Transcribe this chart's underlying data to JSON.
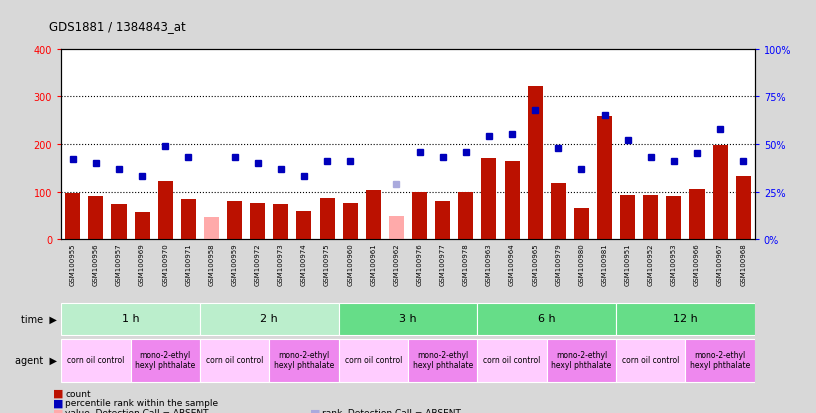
{
  "title": "GDS1881 / 1384843_at",
  "samples": [
    "GSM100955",
    "GSM100956",
    "GSM100957",
    "GSM100969",
    "GSM100970",
    "GSM100971",
    "GSM100958",
    "GSM100959",
    "GSM100972",
    "GSM100973",
    "GSM100974",
    "GSM100975",
    "GSM100960",
    "GSM100961",
    "GSM100962",
    "GSM100976",
    "GSM100977",
    "GSM100978",
    "GSM100963",
    "GSM100964",
    "GSM100965",
    "GSM100979",
    "GSM100980",
    "GSM100981",
    "GSM100951",
    "GSM100952",
    "GSM100953",
    "GSM100966",
    "GSM100967",
    "GSM100968"
  ],
  "counts": [
    97,
    90,
    73,
    58,
    123,
    85,
    82,
    80,
    75,
    73,
    60,
    87,
    75,
    104,
    0,
    100,
    80,
    100,
    170,
    165,
    321,
    118,
    65,
    259,
    92,
    93,
    90,
    105,
    198,
    132
  ],
  "absent_value": [
    false,
    false,
    false,
    false,
    false,
    false,
    true,
    false,
    false,
    false,
    false,
    false,
    false,
    false,
    true,
    false,
    false,
    false,
    false,
    false,
    false,
    false,
    false,
    false,
    false,
    false,
    false,
    false,
    false,
    false
  ],
  "absent_counts": [
    0,
    0,
    0,
    0,
    0,
    0,
    47,
    0,
    0,
    0,
    0,
    0,
    0,
    0,
    48,
    0,
    0,
    0,
    0,
    0,
    0,
    0,
    0,
    0,
    0,
    0,
    0,
    0,
    0,
    0
  ],
  "percentiles": [
    42,
    40,
    37,
    33,
    49,
    43,
    0,
    43,
    40,
    37,
    33,
    41,
    41,
    0,
    0,
    46,
    43,
    46,
    54,
    55,
    68,
    48,
    37,
    65,
    52,
    43,
    41,
    45,
    58,
    41
  ],
  "absent_rank_pct": [
    0,
    0,
    0,
    0,
    0,
    0,
    0,
    0,
    0,
    0,
    0,
    0,
    0,
    0,
    29,
    0,
    0,
    0,
    0,
    0,
    0,
    0,
    0,
    0,
    0,
    0,
    0,
    0,
    0,
    0
  ],
  "absent_rank": [
    false,
    false,
    false,
    false,
    false,
    false,
    false,
    false,
    false,
    false,
    false,
    false,
    false,
    false,
    true,
    false,
    false,
    false,
    false,
    false,
    false,
    false,
    false,
    false,
    false,
    false,
    false,
    false,
    false,
    false
  ],
  "show_percentile": [
    true,
    true,
    true,
    true,
    true,
    true,
    false,
    true,
    true,
    true,
    true,
    true,
    true,
    false,
    false,
    true,
    true,
    true,
    true,
    true,
    true,
    true,
    true,
    true,
    true,
    true,
    true,
    true,
    true,
    true
  ],
  "time_groups": [
    {
      "label": "1 h",
      "start": 0,
      "end": 5,
      "color": "#bbeecc"
    },
    {
      "label": "2 h",
      "start": 6,
      "end": 11,
      "color": "#bbeecc"
    },
    {
      "label": "3 h",
      "start": 12,
      "end": 17,
      "color": "#66dd88"
    },
    {
      "label": "6 h",
      "start": 18,
      "end": 23,
      "color": "#66dd88"
    },
    {
      "label": "12 h",
      "start": 24,
      "end": 29,
      "color": "#66dd88"
    }
  ],
  "agent_groups": [
    {
      "label": "corn oil control",
      "start": 0,
      "end": 2,
      "color": "#ffccff"
    },
    {
      "label": "mono-2-ethyl\nhexyl phthalate",
      "start": 3,
      "end": 5,
      "color": "#ee88ee"
    },
    {
      "label": "corn oil control",
      "start": 6,
      "end": 8,
      "color": "#ffccff"
    },
    {
      "label": "mono-2-ethyl\nhexyl phthalate",
      "start": 9,
      "end": 11,
      "color": "#ee88ee"
    },
    {
      "label": "corn oil control",
      "start": 12,
      "end": 14,
      "color": "#ffccff"
    },
    {
      "label": "mono-2-ethyl\nhexyl phthalate",
      "start": 15,
      "end": 17,
      "color": "#ee88ee"
    },
    {
      "label": "corn oil control",
      "start": 18,
      "end": 20,
      "color": "#ffccff"
    },
    {
      "label": "mono-2-ethyl\nhexyl phthalate",
      "start": 21,
      "end": 23,
      "color": "#ee88ee"
    },
    {
      "label": "corn oil control",
      "start": 24,
      "end": 26,
      "color": "#ffccff"
    },
    {
      "label": "mono-2-ethyl\nhexyl phthalate",
      "start": 27,
      "end": 29,
      "color": "#ee88ee"
    }
  ],
  "bar_color": "#bb1100",
  "absent_bar_color": "#ffaaaa",
  "dot_color": "#0000bb",
  "absent_dot_color": "#aaaadd",
  "ylim_left": [
    0,
    400
  ],
  "ylim_right": [
    0,
    100
  ],
  "yticks_left": [
    0,
    100,
    200,
    300,
    400
  ],
  "yticks_right": [
    0,
    25,
    50,
    75,
    100
  ],
  "bg_color": "#d8d8d8",
  "plot_bg": "#ffffff",
  "xtick_bg": "#cccccc"
}
